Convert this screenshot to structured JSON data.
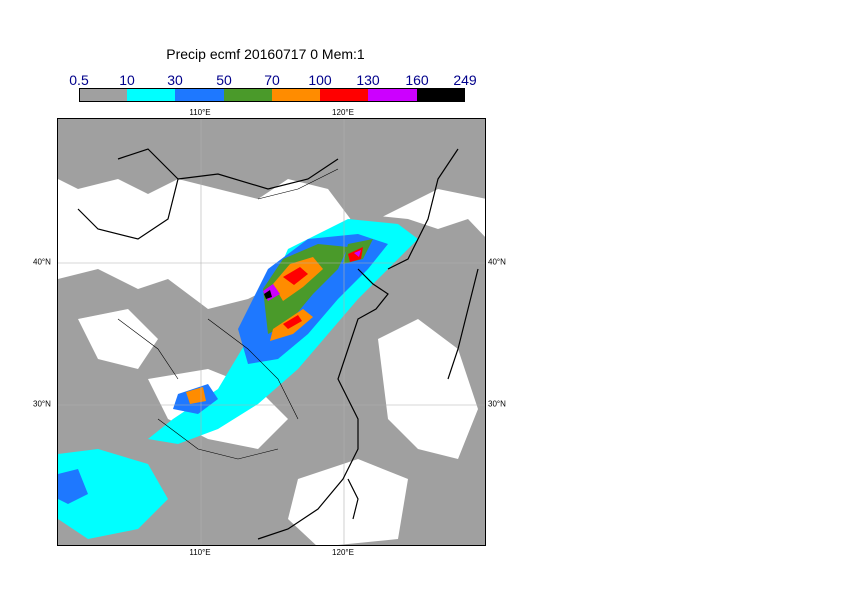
{
  "title": "Precip ecmf 20160717 0 Mem:1",
  "legend": {
    "labels": [
      "0.5",
      "10",
      "30",
      "50",
      "70",
      "100",
      "130",
      "160",
      "249"
    ],
    "colors": [
      "#a0a0a0",
      "#00ffff",
      "#1e78ff",
      "#4a9a2a",
      "#ff8c00",
      "#ff0000",
      "#cc00ff",
      "#000000"
    ]
  },
  "axes": {
    "lon_ticks": [
      "110°E",
      "120°E"
    ],
    "lat_ticks": [
      "40°N",
      "30°N"
    ]
  }
}
